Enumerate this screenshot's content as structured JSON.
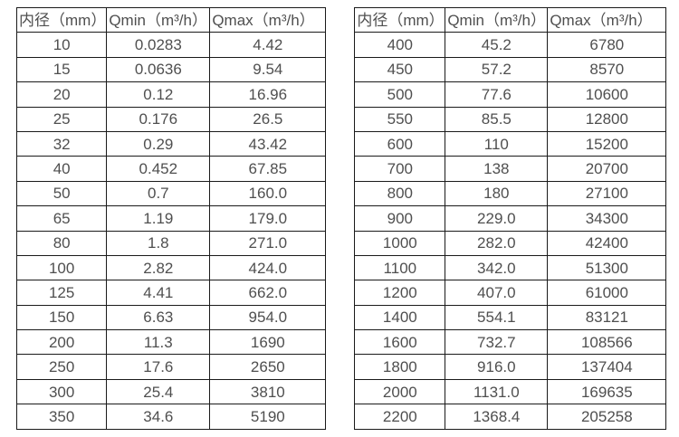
{
  "page": {
    "background": "#ffffff",
    "border_color": "#1a1a1a",
    "text_color": "#4f4f4f"
  },
  "chart_data": {
    "type": "table",
    "title": "",
    "notes": "Two side-by-side flow-rate tables: inner diameter vs minimum and maximum flow"
  },
  "tables": [
    {
      "name": "flow-table-small-diameters",
      "headers": [
        "内径（mm）",
        "Qmin（m³/h）",
        "Qmax（m³/h）"
      ],
      "rows": [
        [
          "10",
          "0.0283",
          "4.42"
        ],
        [
          "15",
          "0.0636",
          "9.54"
        ],
        [
          "20",
          "0.12",
          "16.96"
        ],
        [
          "25",
          "0.176",
          "26.5"
        ],
        [
          "32",
          "0.29",
          "43.42"
        ],
        [
          "40",
          "0.452",
          "67.85"
        ],
        [
          "50",
          "0.7",
          "160.0"
        ],
        [
          "65",
          "1.19",
          "179.0"
        ],
        [
          "80",
          "1.8",
          "271.0"
        ],
        [
          "100",
          "2.82",
          "424.0"
        ],
        [
          "125",
          "4.41",
          "662.0"
        ],
        [
          "150",
          "6.63",
          "954.0"
        ],
        [
          "200",
          "11.3",
          "1690"
        ],
        [
          "250",
          "17.6",
          "2650"
        ],
        [
          "300",
          "25.4",
          "3810"
        ],
        [
          "350",
          "34.6",
          "5190"
        ]
      ]
    },
    {
      "name": "flow-table-large-diameters",
      "headers": [
        "内径（mm）",
        "Qmin（m³/h）",
        "Qmax（m³/h）"
      ],
      "rows": [
        [
          "400",
          "45.2",
          "6780"
        ],
        [
          "450",
          "57.2",
          "8570"
        ],
        [
          "500",
          "77.6",
          "10600"
        ],
        [
          "550",
          "85.5",
          "12800"
        ],
        [
          "600",
          "110",
          "15200"
        ],
        [
          "700",
          "138",
          "20700"
        ],
        [
          "800",
          "180",
          "27100"
        ],
        [
          "900",
          "229.0",
          "34300"
        ],
        [
          "1000",
          "282.0",
          "42400"
        ],
        [
          "1100",
          "342.0",
          "51300"
        ],
        [
          "1200",
          "407.0",
          "61000"
        ],
        [
          "1400",
          "554.1",
          "83121"
        ],
        [
          "1600",
          "732.7",
          "108566"
        ],
        [
          "1800",
          "916.0",
          "137404"
        ],
        [
          "2000",
          "1131.0",
          "169635"
        ],
        [
          "2200",
          "1368.4",
          "205258"
        ]
      ]
    }
  ]
}
